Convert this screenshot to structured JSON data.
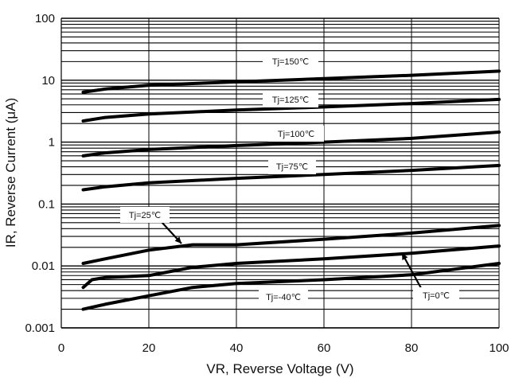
{
  "chart_data": {
    "type": "line",
    "title": "",
    "xlabel": "VR, Reverse Voltage (V)",
    "ylabel": "IR, Reverse Current (μA)",
    "x_range": [
      0,
      100
    ],
    "y_range": [
      0.001,
      100
    ],
    "y_scale": "log",
    "grid": true,
    "x_ticks": [
      0,
      20,
      40,
      60,
      80,
      100
    ],
    "x_tick_labels": [
      "0",
      "20",
      "40",
      "60",
      "80",
      "100"
    ],
    "y_ticks": [
      0.001,
      0.01,
      0.1,
      1,
      10,
      100
    ],
    "y_tick_labels": [
      "0.001",
      "0.01",
      "0.1",
      "1",
      "10",
      "100"
    ],
    "series": [
      {
        "name": "Tj=150℃",
        "x": [
          5,
          10,
          20,
          40,
          60,
          80,
          100
        ],
        "y": [
          6.4,
          7.2,
          8.3,
          9.4,
          10.6,
          12,
          14
        ]
      },
      {
        "name": "Tj=125℃",
        "x": [
          5,
          10,
          20,
          40,
          60,
          80,
          100
        ],
        "y": [
          2.2,
          2.5,
          2.85,
          3.3,
          3.7,
          4.2,
          4.9
        ]
      },
      {
        "name": "Tj=100℃",
        "x": [
          5,
          10,
          20,
          40,
          60,
          80,
          100
        ],
        "y": [
          0.6,
          0.67,
          0.76,
          0.88,
          1.0,
          1.15,
          1.45
        ]
      },
      {
        "name": "Tj=75℃",
        "x": [
          5,
          10,
          20,
          40,
          60,
          80,
          100
        ],
        "y": [
          0.17,
          0.19,
          0.22,
          0.26,
          0.3,
          0.35,
          0.42
        ]
      },
      {
        "name": "Tj=25℃",
        "x": [
          5,
          10,
          20,
          30,
          40,
          60,
          80,
          100
        ],
        "y": [
          0.011,
          0.013,
          0.018,
          0.022,
          0.022,
          0.027,
          0.034,
          0.045
        ]
      },
      {
        "name": "Tj=0℃",
        "x": [
          5,
          7,
          10,
          20,
          30,
          40,
          60,
          80,
          100
        ],
        "y": [
          0.0045,
          0.006,
          0.0065,
          0.007,
          0.0095,
          0.011,
          0.013,
          0.016,
          0.021
        ]
      },
      {
        "name": "Tj=-40℃",
        "x": [
          5,
          10,
          20,
          30,
          40,
          60,
          80,
          100
        ],
        "y": [
          0.002,
          0.0024,
          0.0033,
          0.0045,
          0.0052,
          0.006,
          0.0072,
          0.011
        ]
      }
    ],
    "annotations": [
      {
        "text": "Tj=150℃",
        "series": "Tj=150℃"
      },
      {
        "text": "Tj=125℃",
        "series": "Tj=125℃"
      },
      {
        "text": "Tj=100℃",
        "series": "Tj=100℃"
      },
      {
        "text": "Tj=75℃",
        "series": "Tj=75℃"
      },
      {
        "text": "Tj=25℃",
        "series": "Tj=25℃",
        "arrow": true
      },
      {
        "text": "Tj=0℃",
        "series": "Tj=0℃",
        "arrow": true
      },
      {
        "text": "Tj=-40℃",
        "series": "Tj=-40℃"
      }
    ],
    "colors": {
      "line": "#000000",
      "grid": "#000000",
      "background": "#ffffff"
    }
  }
}
